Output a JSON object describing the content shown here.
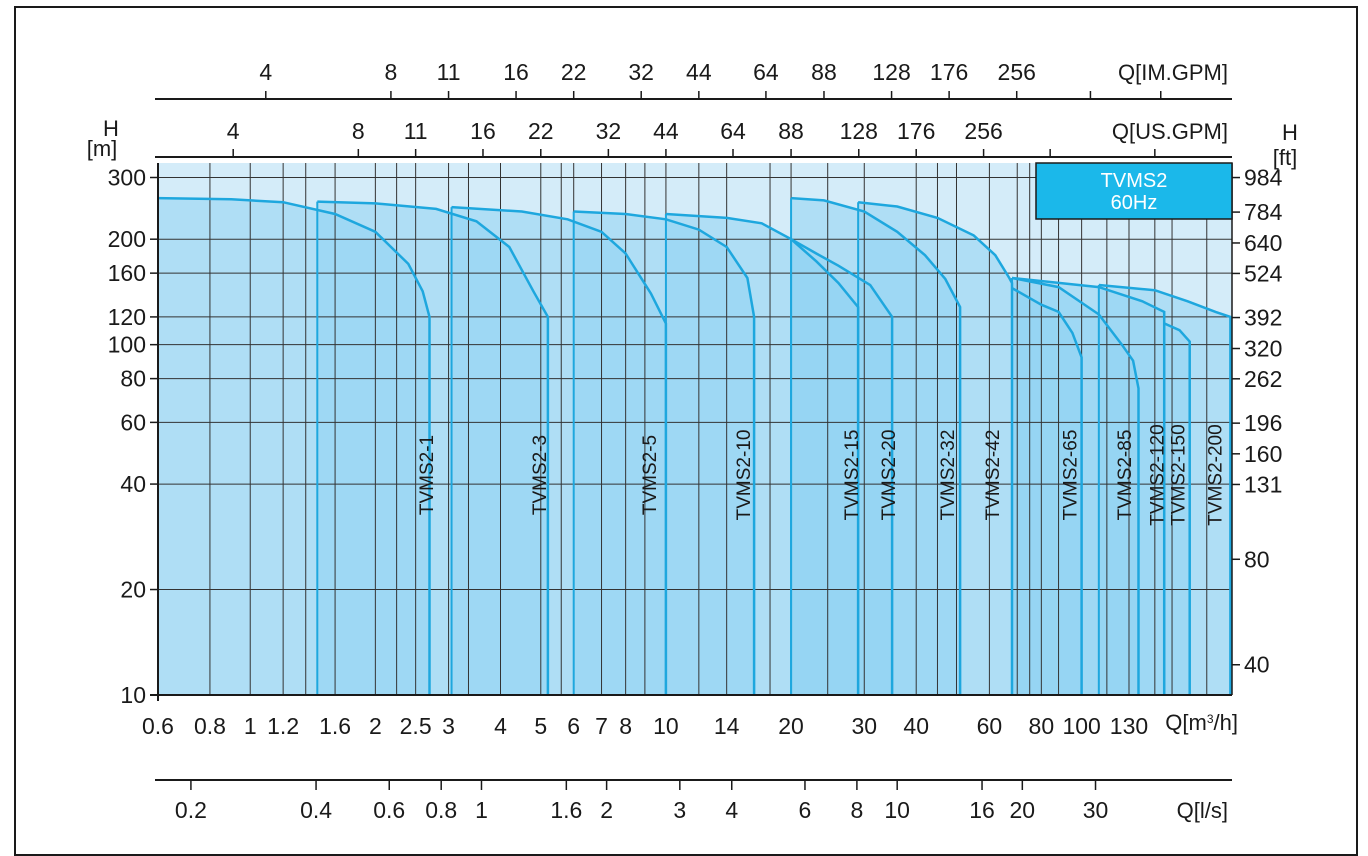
{
  "chart_data": {
    "type": "area",
    "title": "TVMS2",
    "subtitle": "60Hz",
    "xlabel": "Q[m³/h]",
    "xlabel_base": "Q[m",
    "xlabel_sup": "3",
    "xlabel_tail": "/h]",
    "ylabel_left": "H",
    "ylabel_left_unit": "[m]",
    "ylabel_right": "H",
    "ylabel_right_unit": "[ft]",
    "xscale": "log",
    "yscale": "log",
    "xlim": [
      0.6,
      230
    ],
    "ylim": [
      10,
      330
    ],
    "grid": true,
    "colors": {
      "fill": "#8fd3f2",
      "curve": "#1ea7de",
      "plot_bg": "#d4ecf9",
      "grid": "#333333",
      "badge": "#1bb8ea"
    },
    "x_ticks": [
      {
        "v": 0.6,
        "t": "0.6"
      },
      {
        "v": 0.8,
        "t": "0.8"
      },
      {
        "v": 1,
        "t": "1"
      },
      {
        "v": 1.2,
        "t": "1.2"
      },
      {
        "v": 1.6,
        "t": "1.6"
      },
      {
        "v": 2,
        "t": "2"
      },
      {
        "v": 2.5,
        "t": "2.5"
      },
      {
        "v": 3,
        "t": "3"
      },
      {
        "v": 4,
        "t": "4"
      },
      {
        "v": 5,
        "t": "5"
      },
      {
        "v": 6,
        "t": "6"
      },
      {
        "v": 7,
        "t": "7"
      },
      {
        "v": 8,
        "t": "8"
      },
      {
        "v": 10,
        "t": "10"
      },
      {
        "v": 14,
        "t": "14"
      },
      {
        "v": 20,
        "t": "20"
      },
      {
        "v": 30,
        "t": "30"
      },
      {
        "v": 40,
        "t": "40"
      },
      {
        "v": 60,
        "t": "60"
      },
      {
        "v": 80,
        "t": "80"
      },
      {
        "v": 100,
        "t": "100"
      },
      {
        "v": 130,
        "t": "130"
      }
    ],
    "y_ticks_left": [
      {
        "v": 10,
        "t": "10"
      },
      {
        "v": 20,
        "t": "20"
      },
      {
        "v": 40,
        "t": "40"
      },
      {
        "v": 60,
        "t": "60"
      },
      {
        "v": 80,
        "t": "80"
      },
      {
        "v": 100,
        "t": "100"
      },
      {
        "v": 120,
        "t": "120"
      },
      {
        "v": 160,
        "t": "160"
      },
      {
        "v": 200,
        "t": "200"
      },
      {
        "v": 300,
        "t": "300"
      }
    ],
    "y_ticks_right": [
      {
        "v": 12.2,
        "t": "40"
      },
      {
        "v": 24.4,
        "t": "80"
      },
      {
        "v": 39.9,
        "t": "131"
      },
      {
        "v": 48.8,
        "t": "160"
      },
      {
        "v": 59.7,
        "t": "196"
      },
      {
        "v": 79.9,
        "t": "262"
      },
      {
        "v": 97.5,
        "t": "320"
      },
      {
        "v": 119.5,
        "t": "392"
      },
      {
        "v": 159.7,
        "t": "524"
      },
      {
        "v": 195.1,
        "t": "640"
      },
      {
        "v": 239,
        "t": "784"
      },
      {
        "v": 299.9,
        "t": "984"
      }
    ],
    "top_axis_us": {
      "label": "Q[US.GPM]",
      "ticks": [
        {
          "v": 0.91,
          "t": "4"
        },
        {
          "v": 1.82,
          "t": "8"
        },
        {
          "v": 2.5,
          "t": "11"
        },
        {
          "v": 3.63,
          "t": "16"
        },
        {
          "v": 5.0,
          "t": "22"
        },
        {
          "v": 7.27,
          "t": "32"
        },
        {
          "v": 10.0,
          "t": "44"
        },
        {
          "v": 14.5,
          "t": "64"
        },
        {
          "v": 20.0,
          "t": "88"
        },
        {
          "v": 29.1,
          "t": "128"
        },
        {
          "v": 40.0,
          "t": "176"
        },
        {
          "v": 58.1,
          "t": "256"
        }
      ],
      "minor": [
        84,
        150
      ]
    },
    "top_axis_im": {
      "label": "Q[IM.GPM]",
      "ticks": [
        {
          "v": 1.09,
          "t": "4"
        },
        {
          "v": 2.18,
          "t": "8"
        },
        {
          "v": 3.0,
          "t": "11"
        },
        {
          "v": 4.36,
          "t": "16"
        },
        {
          "v": 6.0,
          "t": "22"
        },
        {
          "v": 8.72,
          "t": "32"
        },
        {
          "v": 12.0,
          "t": "44"
        },
        {
          "v": 17.4,
          "t": "64"
        },
        {
          "v": 24.0,
          "t": "88"
        },
        {
          "v": 34.9,
          "t": "128"
        },
        {
          "v": 48.0,
          "t": "176"
        },
        {
          "v": 69.8,
          "t": "256"
        }
      ],
      "minor": [
        105,
        155
      ]
    },
    "bottom_axis_ls": {
      "label": "Q[l/s]",
      "ticks": [
        {
          "v": 0.72,
          "t": "0.2"
        },
        {
          "v": 1.44,
          "t": "0.4"
        },
        {
          "v": 2.16,
          "t": "0.6"
        },
        {
          "v": 2.88,
          "t": "0.8"
        },
        {
          "v": 3.6,
          "t": "1"
        },
        {
          "v": 5.76,
          "t": "1.6"
        },
        {
          "v": 7.2,
          "t": "2"
        },
        {
          "v": 10.8,
          "t": "3"
        },
        {
          "v": 14.4,
          "t": "4"
        },
        {
          "v": 21.6,
          "t": "6"
        },
        {
          "v": 28.8,
          "t": "8"
        },
        {
          "v": 36,
          "t": "10"
        },
        {
          "v": 57.6,
          "t": "16"
        },
        {
          "v": 72,
          "t": "20"
        },
        {
          "v": 108,
          "t": "30"
        }
      ],
      "tick_positions": [
        0.72,
        1.44,
        2.16,
        2.88,
        3.6,
        5.76,
        7.2,
        10.8,
        14.4,
        21.6,
        28.8,
        36,
        57.6,
        72,
        108
      ]
    },
    "series": [
      {
        "name": "TVMS2-1",
        "curve": [
          [
            0.6,
            262
          ],
          [
            0.9,
            260
          ],
          [
            1.2,
            255
          ],
          [
            1.6,
            236
          ],
          [
            2.0,
            210
          ],
          [
            2.4,
            170
          ],
          [
            2.6,
            142
          ],
          [
            2.7,
            120
          ]
        ],
        "qmax": 2.7,
        "label_x": 2.68
      },
      {
        "name": "TVMS2-3",
        "curve": [
          [
            1.45,
            256
          ],
          [
            2.0,
            253
          ],
          [
            2.8,
            244
          ],
          [
            3.5,
            225
          ],
          [
            4.2,
            190
          ],
          [
            4.8,
            142
          ],
          [
            5.2,
            120
          ]
        ],
        "qmax": 5.2,
        "label_x": 5.0
      },
      {
        "name": "TVMS2-5",
        "curve": [
          [
            3.05,
            247
          ],
          [
            4.5,
            240
          ],
          [
            5.8,
            228
          ],
          [
            7.0,
            210
          ],
          [
            8.0,
            182
          ],
          [
            9.2,
            140
          ],
          [
            10.0,
            115
          ]
        ],
        "qmax": 10.0,
        "label_x": 9.2
      },
      {
        "name": "TVMS2-10",
        "curve": [
          [
            6.0,
            240
          ],
          [
            8.0,
            236
          ],
          [
            10.0,
            228
          ],
          [
            12.0,
            213
          ],
          [
            14.0,
            190
          ],
          [
            15.7,
            155
          ],
          [
            16.3,
            120
          ]
        ],
        "qmax": 16.3,
        "label_x": 15.5
      },
      {
        "name": "TVMS2-15",
        "curve": [
          [
            10.0,
            236
          ],
          [
            14.0,
            230
          ],
          [
            17.0,
            222
          ],
          [
            20.0,
            200
          ],
          [
            23.0,
            173
          ],
          [
            26.0,
            150
          ],
          [
            29.0,
            128
          ]
        ],
        "qmax": 29.0,
        "label_x": 28.2
      },
      {
        "name": "TVMS2-20",
        "curve": [
          [
            20.0,
            200
          ],
          [
            23.0,
            182
          ],
          [
            26.0,
            168
          ],
          [
            31.0,
            148
          ],
          [
            35.0,
            120
          ]
        ],
        "qmax": 35.0,
        "label_x": 34.6
      },
      {
        "name": "TVMS2-32",
        "curve": [
          [
            20.0,
            262
          ],
          [
            24.0,
            258
          ],
          [
            30.0,
            240
          ],
          [
            36.0,
            210
          ],
          [
            42.0,
            180
          ],
          [
            47.0,
            154
          ],
          [
            51.0,
            128
          ]
        ],
        "qmax": 51.0,
        "label_x": 48.0
      },
      {
        "name": "TVMS2-42",
        "curve": [
          [
            29.0,
            255
          ],
          [
            36.0,
            248
          ],
          [
            45.0,
            230
          ],
          [
            55.0,
            205
          ],
          [
            62.0,
            180
          ],
          [
            67.0,
            155
          ],
          [
            68.0,
            150
          ]
        ],
        "qmax": 68.0,
        "label_x": 61.5
      },
      {
        "name": "TVMS2-65",
        "curve": [
          [
            68.0,
            145
          ],
          [
            80.0,
            130
          ],
          [
            88.0,
            124
          ],
          [
            95.0,
            108
          ],
          [
            100.0,
            92
          ]
        ],
        "qmax": 100.0,
        "label_x": 94.5
      },
      {
        "name": "TVMS2-85",
        "curve": [
          [
            68.0,
            155
          ],
          [
            88.0,
            146
          ],
          [
            110.0,
            122
          ],
          [
            125.0,
            100
          ],
          [
            133.0,
            90
          ],
          [
            137.0,
            75
          ]
        ],
        "qmax": 137.0,
        "label_x": 128.0
      },
      {
        "name": "TVMS2-120",
        "curve": [
          [
            68.0,
            155
          ],
          [
            110.0,
            146
          ],
          [
            140.0,
            133
          ],
          [
            158.0,
            124
          ]
        ],
        "qmax": 158.0,
        "label_x": 153.0
      },
      {
        "name": "TVMS2-150",
        "curve": [
          [
            158.0,
            115
          ],
          [
            172.0,
            110
          ],
          [
            182.0,
            102
          ]
        ],
        "qmax": 182.0,
        "label_x": 172.0
      },
      {
        "name": "TVMS2-200",
        "curve": [
          [
            110.0,
            148
          ],
          [
            150.0,
            143
          ],
          [
            180.0,
            133
          ],
          [
            210.0,
            124
          ],
          [
            228.0,
            120
          ]
        ],
        "qmax": 228.0,
        "label_x": 211.0
      }
    ],
    "extra_gridlines": [
      1.36,
      2.25,
      3.35,
      5.6,
      8.9,
      12.0,
      17.8,
      24.5,
      45,
      50,
      70,
      75,
      88,
      115,
      150,
      165,
      200
    ]
  }
}
